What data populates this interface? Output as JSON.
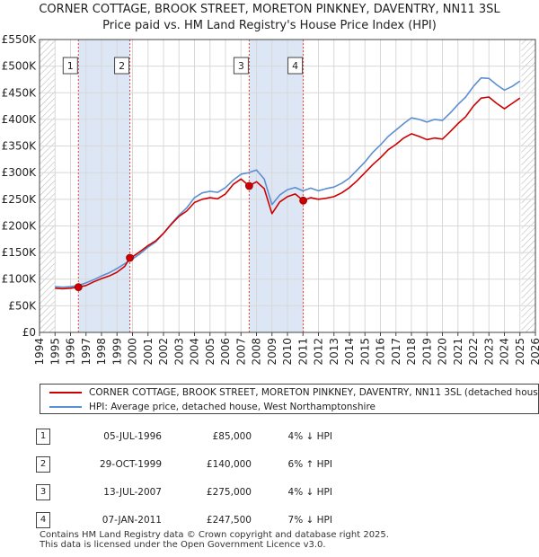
{
  "chart_data": {
    "type": "line",
    "title_line1": "CORNER COTTAGE, BROOK STREET, MORETON PINKNEY, DAVENTRY, NN11 3SL",
    "title_line2": "Price paid vs. HM Land Registry's House Price Index (HPI)",
    "ylim": [
      0,
      550000
    ],
    "xlim": [
      1994,
      2026
    ],
    "y_ticks": [
      {
        "value": 0,
        "label": "£0"
      },
      {
        "value": 50000,
        "label": "£50K"
      },
      {
        "value": 100000,
        "label": "£100K"
      },
      {
        "value": 150000,
        "label": "£150K"
      },
      {
        "value": 200000,
        "label": "£200K"
      },
      {
        "value": 250000,
        "label": "£250K"
      },
      {
        "value": 300000,
        "label": "£300K"
      },
      {
        "value": 350000,
        "label": "£350K"
      },
      {
        "value": 400000,
        "label": "£400K"
      },
      {
        "value": 450000,
        "label": "£450K"
      },
      {
        "value": 500000,
        "label": "£500K"
      },
      {
        "value": 550000,
        "label": "£550K"
      }
    ],
    "x_ticks": [
      "1994",
      "1995",
      "1996",
      "1997",
      "1998",
      "1999",
      "2000",
      "2001",
      "2002",
      "2003",
      "2004",
      "2005",
      "2006",
      "2007",
      "2008",
      "2009",
      "2010",
      "2011",
      "2012",
      "2013",
      "2014",
      "2015",
      "2016",
      "2017",
      "2018",
      "2019",
      "2020",
      "2021",
      "2022",
      "2023",
      "2024",
      "2025",
      "2026"
    ],
    "data_start_year": 1995,
    "data_end_year": 2025.1,
    "series": [
      {
        "name": "CORNER COTTAGE, BROOK STREET, MORETON PINKNEY, DAVENTRY, NN11 3SL (detached hous",
        "color": "#cc0000",
        "points": [
          [
            1995.0,
            83000
          ],
          [
            1995.5,
            82000
          ],
          [
            1996.0,
            83000
          ],
          [
            1996.51,
            85000
          ],
          [
            1997.0,
            88000
          ],
          [
            1997.5,
            95000
          ],
          [
            1998.0,
            101000
          ],
          [
            1998.5,
            106000
          ],
          [
            1999.0,
            113000
          ],
          [
            1999.5,
            124000
          ],
          [
            1999.83,
            140000
          ],
          [
            2000.0,
            142000
          ],
          [
            2000.5,
            152000
          ],
          [
            2001.0,
            163000
          ],
          [
            2001.5,
            172000
          ],
          [
            2002.0,
            186000
          ],
          [
            2002.5,
            203000
          ],
          [
            2003.0,
            218000
          ],
          [
            2003.5,
            228000
          ],
          [
            2004.0,
            244000
          ],
          [
            2004.5,
            250000
          ],
          [
            2005.0,
            253000
          ],
          [
            2005.5,
            251000
          ],
          [
            2006.0,
            260000
          ],
          [
            2006.5,
            278000
          ],
          [
            2007.0,
            288000
          ],
          [
            2007.53,
            275000
          ],
          [
            2008.0,
            283000
          ],
          [
            2008.5,
            270000
          ],
          [
            2009.0,
            223000
          ],
          [
            2009.5,
            245000
          ],
          [
            2010.0,
            255000
          ],
          [
            2010.5,
            260000
          ],
          [
            2011.02,
            247500
          ],
          [
            2011.5,
            253000
          ],
          [
            2012.0,
            250000
          ],
          [
            2012.5,
            252000
          ],
          [
            2013.0,
            255000
          ],
          [
            2013.5,
            262000
          ],
          [
            2014.0,
            272000
          ],
          [
            2014.5,
            285000
          ],
          [
            2015.0,
            300000
          ],
          [
            2015.5,
            315000
          ],
          [
            2016.0,
            328000
          ],
          [
            2016.5,
            343000
          ],
          [
            2017.0,
            353000
          ],
          [
            2017.5,
            365000
          ],
          [
            2018.0,
            373000
          ],
          [
            2018.5,
            368000
          ],
          [
            2019.0,
            362000
          ],
          [
            2019.5,
            365000
          ],
          [
            2020.0,
            363000
          ],
          [
            2020.5,
            377000
          ],
          [
            2021.0,
            392000
          ],
          [
            2021.5,
            405000
          ],
          [
            2022.0,
            425000
          ],
          [
            2022.5,
            440000
          ],
          [
            2023.0,
            442000
          ],
          [
            2023.5,
            430000
          ],
          [
            2024.0,
            420000
          ],
          [
            2024.5,
            430000
          ],
          [
            2025.0,
            440000
          ]
        ]
      },
      {
        "name": "HPI: Average price, detached house, West Northamptonshire",
        "color": "#5b8fd0",
        "points": [
          [
            1995.0,
            86000
          ],
          [
            1995.5,
            85000
          ],
          [
            1996.0,
            86000
          ],
          [
            1996.5,
            88000
          ],
          [
            1997.0,
            93000
          ],
          [
            1997.5,
            99000
          ],
          [
            1998.0,
            106000
          ],
          [
            1998.5,
            112000
          ],
          [
            1999.0,
            120000
          ],
          [
            1999.5,
            129000
          ],
          [
            2000.0,
            138000
          ],
          [
            2000.5,
            148000
          ],
          [
            2001.0,
            160000
          ],
          [
            2001.5,
            170000
          ],
          [
            2002.0,
            186000
          ],
          [
            2002.5,
            204000
          ],
          [
            2003.0,
            220000
          ],
          [
            2003.5,
            234000
          ],
          [
            2004.0,
            253000
          ],
          [
            2004.5,
            262000
          ],
          [
            2005.0,
            265000
          ],
          [
            2005.5,
            263000
          ],
          [
            2006.0,
            272000
          ],
          [
            2006.5,
            286000
          ],
          [
            2007.0,
            297000
          ],
          [
            2007.5,
            300000
          ],
          [
            2008.0,
            305000
          ],
          [
            2008.5,
            288000
          ],
          [
            2009.0,
            240000
          ],
          [
            2009.5,
            258000
          ],
          [
            2010.0,
            268000
          ],
          [
            2010.5,
            272000
          ],
          [
            2011.0,
            266000
          ],
          [
            2011.5,
            271000
          ],
          [
            2012.0,
            266000
          ],
          [
            2012.5,
            270000
          ],
          [
            2013.0,
            273000
          ],
          [
            2013.5,
            280000
          ],
          [
            2014.0,
            290000
          ],
          [
            2014.5,
            305000
          ],
          [
            2015.0,
            320000
          ],
          [
            2015.5,
            338000
          ],
          [
            2016.0,
            352000
          ],
          [
            2016.5,
            368000
          ],
          [
            2017.0,
            380000
          ],
          [
            2017.5,
            392000
          ],
          [
            2018.0,
            403000
          ],
          [
            2018.5,
            400000
          ],
          [
            2019.0,
            395000
          ],
          [
            2019.5,
            400000
          ],
          [
            2020.0,
            398000
          ],
          [
            2020.5,
            412000
          ],
          [
            2021.0,
            428000
          ],
          [
            2021.5,
            442000
          ],
          [
            2022.0,
            462000
          ],
          [
            2022.5,
            478000
          ],
          [
            2023.0,
            477000
          ],
          [
            2023.5,
            465000
          ],
          [
            2024.0,
            455000
          ],
          [
            2024.5,
            462000
          ],
          [
            2025.0,
            472000
          ]
        ]
      }
    ],
    "sales": [
      {
        "num": "1",
        "x": 1996.51,
        "value": 85000,
        "date": "05-JUL-1996",
        "price": "£85,000",
        "hpi": "4% ↓ HPI"
      },
      {
        "num": "2",
        "x": 1999.83,
        "value": 140000,
        "date": "29-OCT-1999",
        "price": "£140,000",
        "hpi": "6% ↑ HPI"
      },
      {
        "num": "3",
        "x": 2007.53,
        "value": 275000,
        "date": "13-JUL-2007",
        "price": "£275,000",
        "hpi": "4% ↓ HPI"
      },
      {
        "num": "4",
        "x": 2011.02,
        "value": 247500,
        "date": "07-JAN-2011",
        "price": "£247,500",
        "hpi": "7% ↓ HPI"
      }
    ],
    "shaded_ranges": [
      [
        1996.51,
        1999.83
      ],
      [
        2007.53,
        2011.02
      ]
    ],
    "colors": {
      "shade": "#dde6f5",
      "grid": "#d8d8d8",
      "marker_line": "#dd4444",
      "hatch": "#bbbbbb"
    }
  },
  "footer": {
    "line1": "Contains HM Land Registry data © Crown copyright and database right 2025.",
    "line2": "This data is licensed under the Open Government Licence v3.0."
  }
}
